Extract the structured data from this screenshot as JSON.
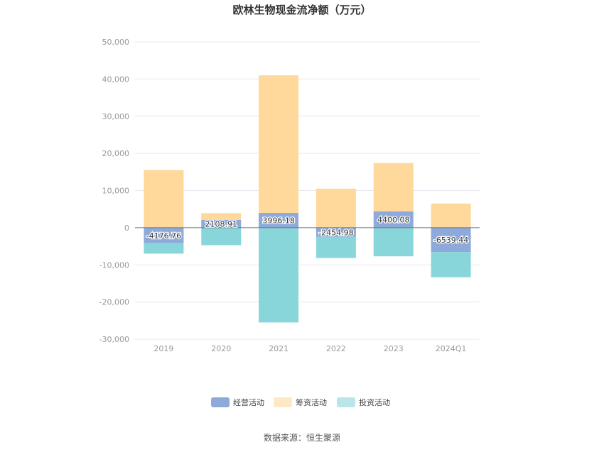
{
  "chart_data": {
    "type": "bar",
    "stacked": true,
    "title": "欧林生物现金流净额（万元）",
    "categories": [
      "2019",
      "2020",
      "2021",
      "2022",
      "2023",
      "2024Q1"
    ],
    "ylim": [
      -30000,
      50000
    ],
    "yticks": [
      50000,
      40000,
      30000,
      20000,
      10000,
      0,
      -10000,
      -20000,
      -30000
    ],
    "ytick_labels": [
      "50,000",
      "40,000",
      "30,000",
      "20,000",
      "10,000",
      "0",
      "-10,000",
      "-20,000",
      "-30,000"
    ],
    "grid": true,
    "legend_position": "bottom",
    "series": [
      {
        "name": "经营活动",
        "color": "#8eaadb",
        "values": [
          -4176.76,
          2108.91,
          3996.18,
          -2454.98,
          4400.08,
          -6539.44
        ],
        "labels": [
          "-4176.76",
          "2108.91",
          "3996.18",
          "-2454.98",
          "4400.08",
          "-6539.44"
        ]
      },
      {
        "name": "筹资活动",
        "color": "#ffd89c",
        "values": [
          15500,
          1800,
          37000,
          10500,
          13000,
          6500
        ]
      },
      {
        "name": "投资活动",
        "color": "#88d6da",
        "values": [
          -2800,
          -4700,
          -25500,
          -5700,
          -7700,
          -6800
        ]
      }
    ]
  },
  "source_text": "数据来源：恒生聚源"
}
